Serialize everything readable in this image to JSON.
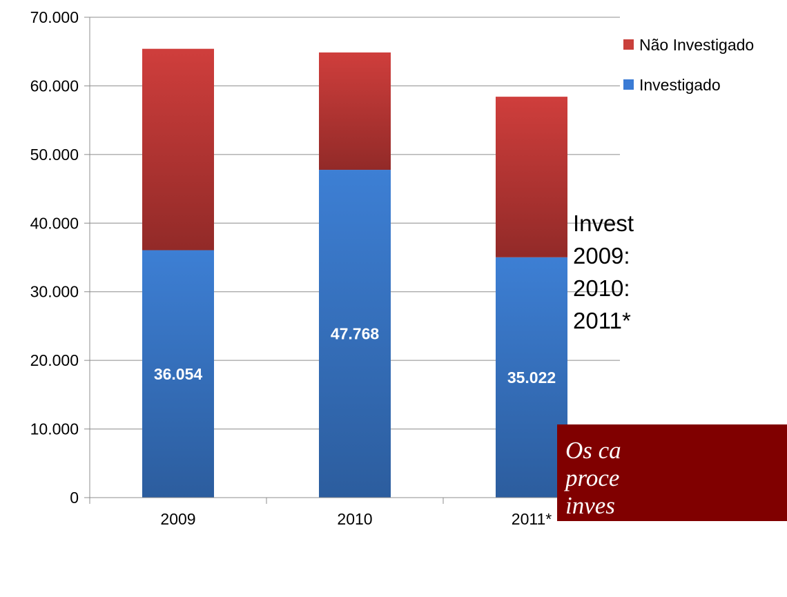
{
  "chart_data": {
    "type": "bar",
    "stacked": true,
    "categories": [
      "2009",
      "2010",
      "2011*"
    ],
    "series": [
      {
        "name": "Investigado",
        "values": [
          36054,
          47768,
          35022
        ],
        "color": "#3a7bd5",
        "data_labels": [
          "36.054",
          "47.768",
          "35.022"
        ]
      },
      {
        "name": "Não Investigado",
        "values": [
          29350,
          17100,
          23400
        ],
        "color": "#c9403b"
      }
    ],
    "ylim": [
      0,
      70000
    ],
    "yticks": [
      0,
      10000,
      20000,
      30000,
      40000,
      50000,
      60000,
      70000
    ],
    "ytick_labels": [
      "0",
      "10.000",
      "20.000",
      "30.000",
      "40.000",
      "50.000",
      "60.000",
      "70.000"
    ],
    "grid": true,
    "legend": {
      "position": "top-right",
      "entries": [
        "Não Investigado",
        "Investigado"
      ]
    }
  },
  "side_text": {
    "lines": [
      "Invest",
      "2009:",
      "2010:",
      "2011*"
    ]
  },
  "note": {
    "lines": [
      "Os ca",
      "proce",
      "inves"
    ],
    "background": "#800000"
  }
}
